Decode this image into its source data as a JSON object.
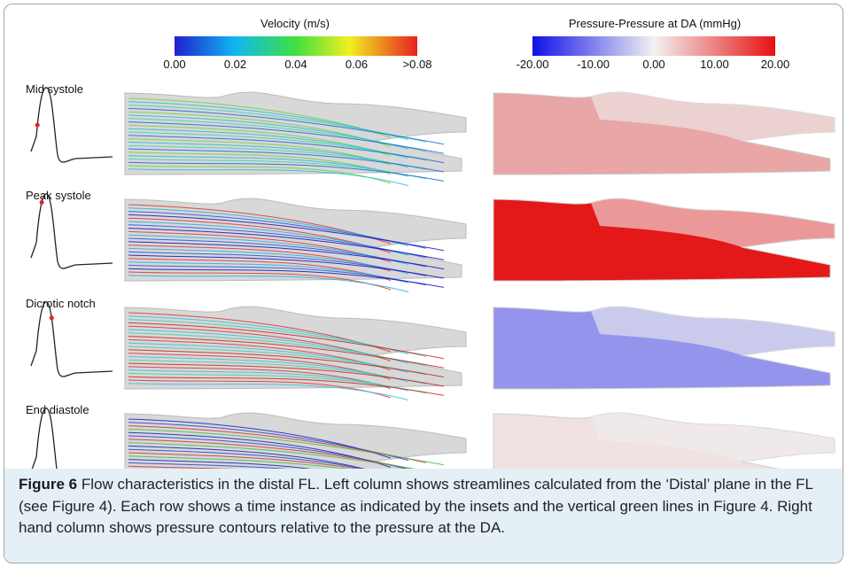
{
  "velocity_colorbar": {
    "title": "Velocity (m/s)",
    "ticks": [
      "0.00",
      "0.02",
      "0.04",
      "0.06",
      ">0.08"
    ]
  },
  "pressure_colorbar": {
    "title": "Pressure-Pressure at DA (mmHg)",
    "ticks": [
      "-20.00",
      "-10.00",
      "0.00",
      "10.00",
      "20.00"
    ]
  },
  "rows": [
    "Mid systole",
    "Peak systole",
    "Dicrotic notch",
    "End diastole"
  ],
  "caption": {
    "label": "Figure 6",
    "text": " Flow characteristics in the distal FL. Left column shows streamlines calculated from the ‘Distal’ plane in the FL (see Figure 4). Each row shows a time instance as indicated by the insets and the vertical green lines in Figure 4. Right hand column shows pressure contours relative to the pressure at the DA."
  }
}
